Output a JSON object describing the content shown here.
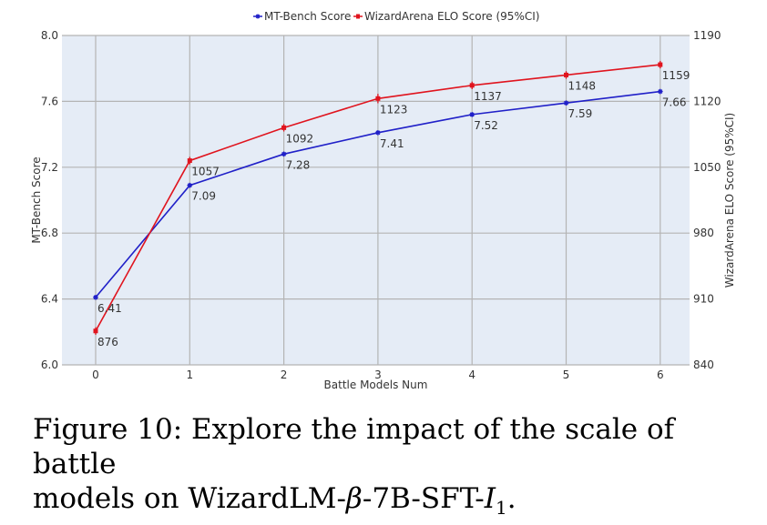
{
  "chart_data": {
    "type": "line",
    "x": [
      0,
      1,
      2,
      3,
      4,
      5,
      6
    ],
    "xlabel": "Battle Models Num",
    "ylabel_left": "MT-Bench Score",
    "ylabel_right": "WizardArena ELO Score (95%CI)",
    "ylim_left": [
      6.0,
      8.0
    ],
    "ylim_right": [
      840,
      1190
    ],
    "yticks_left": [
      6.0,
      6.4,
      6.8,
      7.2,
      7.6,
      8.0
    ],
    "yticks_left_labels": [
      "6.0",
      "6.4",
      "6.8",
      "7.2",
      "7.6",
      "8.0"
    ],
    "yticks_right": [
      840,
      910,
      980,
      1050,
      1120,
      1190
    ],
    "yticks_right_labels": [
      "840",
      "910",
      "980",
      "1050",
      "1120",
      "1190"
    ],
    "xticks_labels": [
      "0",
      "1",
      "2",
      "3",
      "4",
      "5",
      "6"
    ],
    "grid": true,
    "legend_position": "top",
    "series": [
      {
        "name": "MT-Bench Score",
        "axis": "left",
        "color": "#2020c8",
        "values": [
          6.41,
          7.09,
          7.28,
          7.41,
          7.52,
          7.59,
          7.66
        ],
        "labels": [
          "6.41",
          "7.09",
          "7.28",
          "7.41",
          "7.52",
          "7.59",
          "7.66"
        ]
      },
      {
        "name": "WizardArena ELO Score (95%CI)",
        "axis": "right",
        "color": "#e0141e",
        "values": [
          876,
          1057,
          1092,
          1123,
          1137,
          1148,
          1159
        ],
        "error": [
          4,
          4,
          4,
          5,
          4,
          4,
          4
        ],
        "labels": [
          "876",
          "1057",
          "1092",
          "1123",
          "1137",
          "1148",
          "1159"
        ]
      }
    ]
  },
  "caption": {
    "line1": "Figure 10: Explore the impact of the scale of battle",
    "line2_prefix": "models on WizardLM-",
    "line2_beta": "β",
    "line2_middle": "-7B-SFT-",
    "line2_i": "I",
    "line2_sub": "1",
    "line2_end": "."
  }
}
